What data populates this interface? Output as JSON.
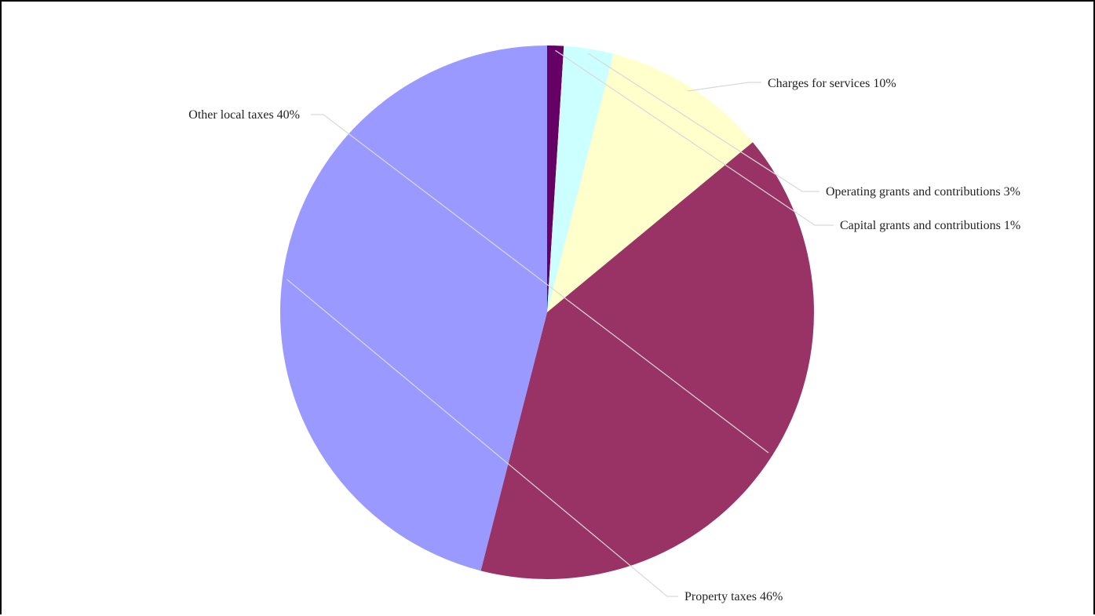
{
  "chart_data": {
    "type": "pie",
    "title": "",
    "start_angle_deg": 90,
    "direction": "counterclockwise",
    "slices": [
      {
        "label": "Capital grants and contributions",
        "value": 1,
        "color": "#660066",
        "text": "Capital grants and contributions 1%"
      },
      {
        "label": "Operating grants and contributions",
        "value": 3,
        "color": "#ccffff",
        "text": "Operating grants and contributions 3%"
      },
      {
        "label": "Charges for services",
        "value": 10,
        "color": "#ffffcc",
        "text": "Charges for services 10%"
      },
      {
        "label": "Other local taxes",
        "value": 40,
        "color": "#993366",
        "text": "Other local taxes 40%"
      },
      {
        "label": "Property taxes",
        "value": 46,
        "color": "#9999ff",
        "text": "Property taxes 46%"
      }
    ]
  }
}
